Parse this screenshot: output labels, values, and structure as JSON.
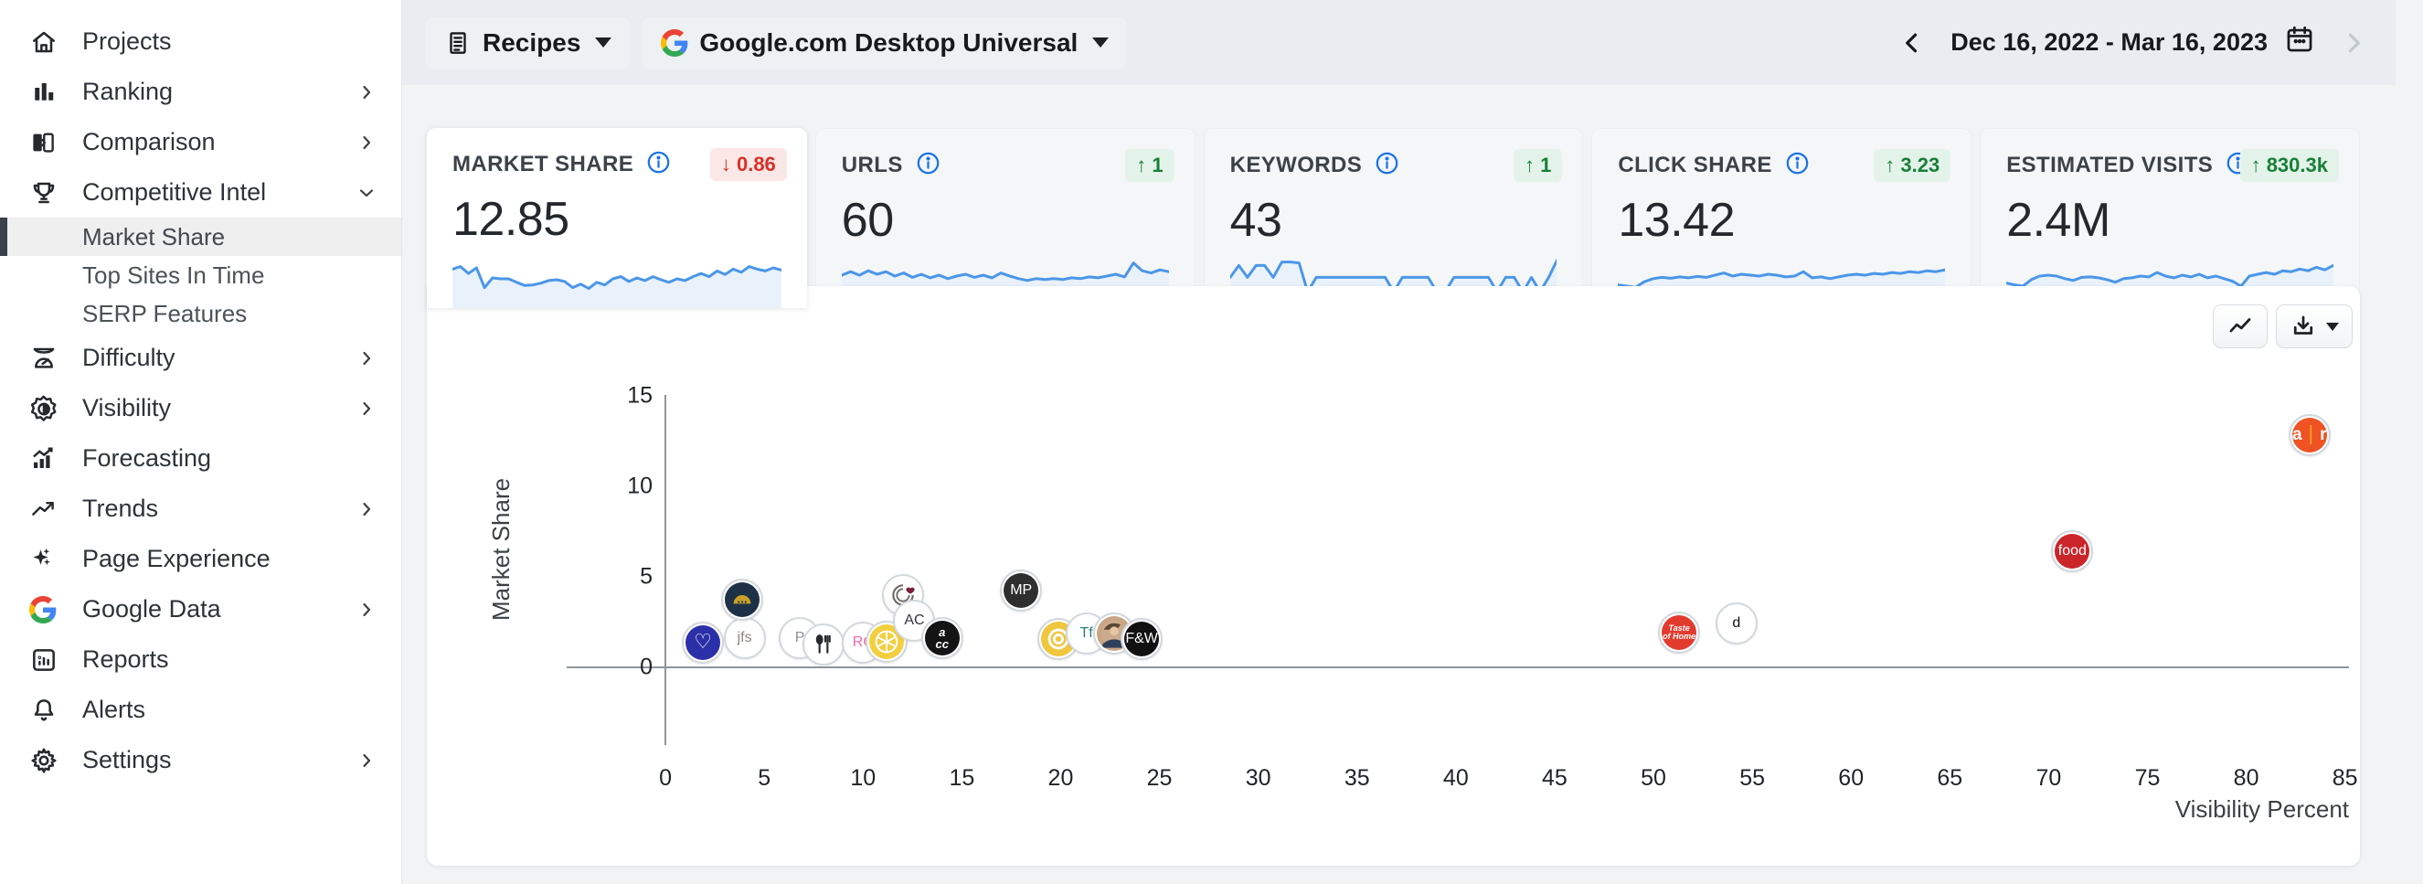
{
  "sidebar": {
    "items": [
      {
        "label": "Projects",
        "icon": "home",
        "chevron": null
      },
      {
        "label": "Ranking",
        "icon": "bar-chart",
        "chevron": "right"
      },
      {
        "label": "Comparison",
        "icon": "compare",
        "chevron": "right"
      },
      {
        "label": "Competitive Intel",
        "icon": "trophy",
        "chevron": "down"
      },
      {
        "label": "Market Share",
        "sub": true,
        "active": true
      },
      {
        "label": "Top Sites In Time",
        "sub": true,
        "active": false
      },
      {
        "label": "SERP Features",
        "sub": true,
        "active": false
      },
      {
        "label": "Difficulty",
        "icon": "gauge",
        "chevron": "right"
      },
      {
        "label": "Visibility",
        "icon": "visibility",
        "chevron": "right"
      },
      {
        "label": "Forecasting",
        "icon": "forecast",
        "chevron": null
      },
      {
        "label": "Trends",
        "icon": "trending-up",
        "chevron": "right"
      },
      {
        "label": "Page Experience",
        "icon": "sparkles",
        "chevron": null
      },
      {
        "label": "Google Data",
        "icon": "google-g",
        "chevron": "right"
      },
      {
        "label": "Reports",
        "icon": "report",
        "chevron": null
      },
      {
        "label": "Alerts",
        "icon": "bell",
        "chevron": null
      },
      {
        "label": "Settings",
        "icon": "gear",
        "chevron": "right"
      }
    ]
  },
  "topbar": {
    "keyword_group": {
      "label": "Recipes"
    },
    "search_engine": {
      "label": "Google.com Desktop Universal"
    },
    "date_range": {
      "label": "Dec 16, 2022 - Mar 16, 2023",
      "prev_enabled": true,
      "next_enabled": false
    }
  },
  "metric_cards": [
    {
      "label": "MARKET SHARE",
      "value": "12.85",
      "delta": "0.86",
      "delta_dir": "down",
      "selected": true,
      "spark": [
        0.72,
        0.78,
        0.62,
        0.75,
        0.3,
        0.52,
        0.5,
        0.5,
        0.42,
        0.35,
        0.36,
        0.4,
        0.46,
        0.48,
        0.44,
        0.3,
        0.38,
        0.28,
        0.42,
        0.36,
        0.5,
        0.55,
        0.44,
        0.52,
        0.46,
        0.55,
        0.48,
        0.42,
        0.5,
        0.46,
        0.55,
        0.62,
        0.55,
        0.68,
        0.6,
        0.72,
        0.65,
        0.78,
        0.72,
        0.68,
        0.75,
        0.7
      ]
    },
    {
      "label": "URLS",
      "value": "60",
      "delta": "1",
      "delta_dir": "up",
      "selected": false,
      "spark": [
        0.5,
        0.58,
        0.5,
        0.6,
        0.52,
        0.58,
        0.48,
        0.55,
        0.45,
        0.52,
        0.44,
        0.5,
        0.42,
        0.48,
        0.52,
        0.45,
        0.5,
        0.44,
        0.55,
        0.48,
        0.42,
        0.38,
        0.42,
        0.4,
        0.42,
        0.4,
        0.44,
        0.42,
        0.46,
        0.44,
        0.48,
        0.52,
        0.46,
        0.78,
        0.6,
        0.55,
        0.62,
        0.58
      ]
    },
    {
      "label": "KEYWORDS",
      "value": "43",
      "delta": "1",
      "delta_dir": "up",
      "selected": false,
      "spark": [
        0.45,
        0.72,
        0.45,
        0.72,
        0.72,
        0.45,
        0.8,
        0.8,
        0.78,
        0.12,
        0.45,
        0.45,
        0.45,
        0.45,
        0.45,
        0.45,
        0.45,
        0.45,
        0.45,
        0.12,
        0.45,
        0.45,
        0.45,
        0.45,
        0.12,
        0.12,
        0.45,
        0.45,
        0.45,
        0.45,
        0.45,
        0.12,
        0.45,
        0.45,
        0.12,
        0.45,
        0.12,
        0.45,
        0.85
      ]
    },
    {
      "label": "CLICK SHARE",
      "value": "13.42",
      "delta": "3.23",
      "delta_dir": "up",
      "selected": false,
      "spark": [
        0.28,
        0.25,
        0.22,
        0.35,
        0.42,
        0.45,
        0.43,
        0.46,
        0.44,
        0.47,
        0.45,
        0.5,
        0.55,
        0.48,
        0.52,
        0.5,
        0.48,
        0.52,
        0.5,
        0.46,
        0.48,
        0.58,
        0.44,
        0.46,
        0.42,
        0.46,
        0.5,
        0.52,
        0.5,
        0.54,
        0.52,
        0.56,
        0.54,
        0.58,
        0.56,
        0.6,
        0.58,
        0.62
      ]
    },
    {
      "label": "ESTIMATED VISITS",
      "value": "2.4M",
      "delta": "830.3k",
      "delta_dir": "up",
      "selected": false,
      "spark": [
        0.32,
        0.28,
        0.25,
        0.4,
        0.48,
        0.5,
        0.48,
        0.42,
        0.38,
        0.45,
        0.46,
        0.44,
        0.4,
        0.34,
        0.42,
        0.44,
        0.48,
        0.46,
        0.56,
        0.48,
        0.44,
        0.5,
        0.46,
        0.52,
        0.44,
        0.48,
        0.42,
        0.36,
        0.25,
        0.48,
        0.52,
        0.56,
        0.52,
        0.6,
        0.58,
        0.64,
        0.6,
        0.68,
        0.62,
        0.72
      ]
    }
  ],
  "chart_data": {
    "type": "scatter",
    "title": "",
    "xlabel": "Visibility Percent",
    "ylabel": "Market Share",
    "xlim": [
      -5,
      85.2
    ],
    "ylim": [
      -4.3,
      15.05
    ],
    "xticks": [
      0,
      5,
      10,
      15,
      20,
      25,
      30,
      35,
      40,
      45,
      50,
      55,
      60,
      65,
      70,
      75,
      80,
      85
    ],
    "yticks": [
      0,
      5,
      10,
      15
    ],
    "grid": false,
    "points": [
      {
        "label": "blue-heart-logo",
        "x": 1.9,
        "y": 1.35,
        "bg": "#2b2fa8",
        "fg": "#ffffff",
        "glyph": "heart",
        "text": "♥"
      },
      {
        "label": "jfs-script-logo",
        "x": 4.0,
        "y": 1.6,
        "bg": "#ffffff",
        "fg": "#8a8580",
        "glyph": "text",
        "text": "jfs",
        "font": "script",
        "fs": 17
      },
      {
        "label": "taco-logo",
        "x": 3.9,
        "y": 3.75,
        "bg": "#1e3247",
        "fg": "#c9a227",
        "glyph": "taco",
        "text": ""
      },
      {
        "label": "p-outline-logo",
        "x": 6.8,
        "y": 1.6,
        "bg": "#ffffff",
        "fg": "#8c9094",
        "glyph": "text",
        "text": "P",
        "font": "serif",
        "fs": 22
      },
      {
        "label": "fork-spoon-logo",
        "x": 8.0,
        "y": 1.25,
        "bg": "#ffffff",
        "fg": "#26282a",
        "glyph": "utensils",
        "text": ""
      },
      {
        "label": "rc-monogram-logo",
        "x": 10.0,
        "y": 1.35,
        "bg": "#ffffff",
        "fg": "#ef6ba9",
        "glyph": "text",
        "text": "RC",
        "font": "script",
        "fs": 18
      },
      {
        "label": "lemon-logo",
        "x": 11.2,
        "y": 1.4,
        "bg": "#f3cf3f",
        "fg": "#ffffff",
        "glyph": "lemon",
        "text": ""
      },
      {
        "label": "spiral-heart-logo",
        "x": 12.0,
        "y": 4.0,
        "bg": "#ffffff",
        "fg": "#7b1f3a",
        "glyph": "spiral-heart",
        "text": ""
      },
      {
        "label": "ac-serif-logo",
        "x": 12.6,
        "y": 2.55,
        "bg": "#ffffff",
        "fg": "#33363a",
        "glyph": "text",
        "text": "AC",
        "font": "serif",
        "fs": 17
      },
      {
        "label": "acc-logo",
        "x": 14.0,
        "y": 1.6,
        "bg": "#141414",
        "fg": "#ffffff",
        "glyph": "stack",
        "text": "a|cc"
      },
      {
        "label": "mp-logo",
        "x": 18.0,
        "y": 4.25,
        "bg": "#2e2e2e",
        "fg": "#ffffff",
        "glyph": "text",
        "text": "MP",
        "font": "sans-bold",
        "fs": 18
      },
      {
        "label": "yellow-rings-logo",
        "x": 19.9,
        "y": 1.55,
        "bg": "#f0c63e",
        "fg": "#ffffff",
        "glyph": "rings",
        "text": ""
      },
      {
        "label": "teal-tf-logo",
        "x": 21.3,
        "y": 1.85,
        "bg": "#ffffff",
        "fg": "#2a7f74",
        "glyph": "text",
        "text": "Tf",
        "font": "serif",
        "fs": 20
      },
      {
        "label": "avatar-photo-logo",
        "x": 22.7,
        "y": 1.85,
        "bg": "#c9a585",
        "fg": "#30405c",
        "glyph": "avatar",
        "text": ""
      },
      {
        "label": "fw-logo",
        "x": 24.1,
        "y": 1.55,
        "bg": "#111111",
        "fg": "#ffffff",
        "glyph": "text",
        "text": "F&W",
        "font": "sans-bold",
        "fs": 13
      },
      {
        "label": "taste-of-home-logo",
        "x": 51.3,
        "y": 1.9,
        "bg": "#e23b2e",
        "fg": "#ffffff",
        "glyph": "stack",
        "text": "Taste|of Home"
      },
      {
        "label": "delish-d-logo",
        "x": 54.2,
        "y": 2.4,
        "bg": "#ffffff",
        "fg": "#111111",
        "glyph": "text",
        "text": "d",
        "font": "serif-bold",
        "fs": 27
      },
      {
        "label": "food-network-logo",
        "x": 71.2,
        "y": 6.4,
        "bg": "#c9252b",
        "fg": "#ffffff",
        "glyph": "text",
        "text": "food",
        "font": "script",
        "fs": 15
      },
      {
        "label": "allrecipes-logo",
        "x": 83.2,
        "y": 12.85,
        "bg": "#ef5323",
        "fg": "#ffffff",
        "glyph": "allrecipes",
        "text": "a|r"
      }
    ]
  },
  "colors": {
    "accent_blue": "#4b96e8",
    "spark_fill": "#e9f1fb",
    "badge_down_bg": "#fbe7e6",
    "badge_down_fg": "#d93025",
    "badge_up_bg": "#e4f3e9",
    "badge_up_fg": "#188038",
    "topbar_bg": "#e9edf1",
    "page_bg": "#f1f3f5",
    "info_icon": "#1a73e8"
  }
}
